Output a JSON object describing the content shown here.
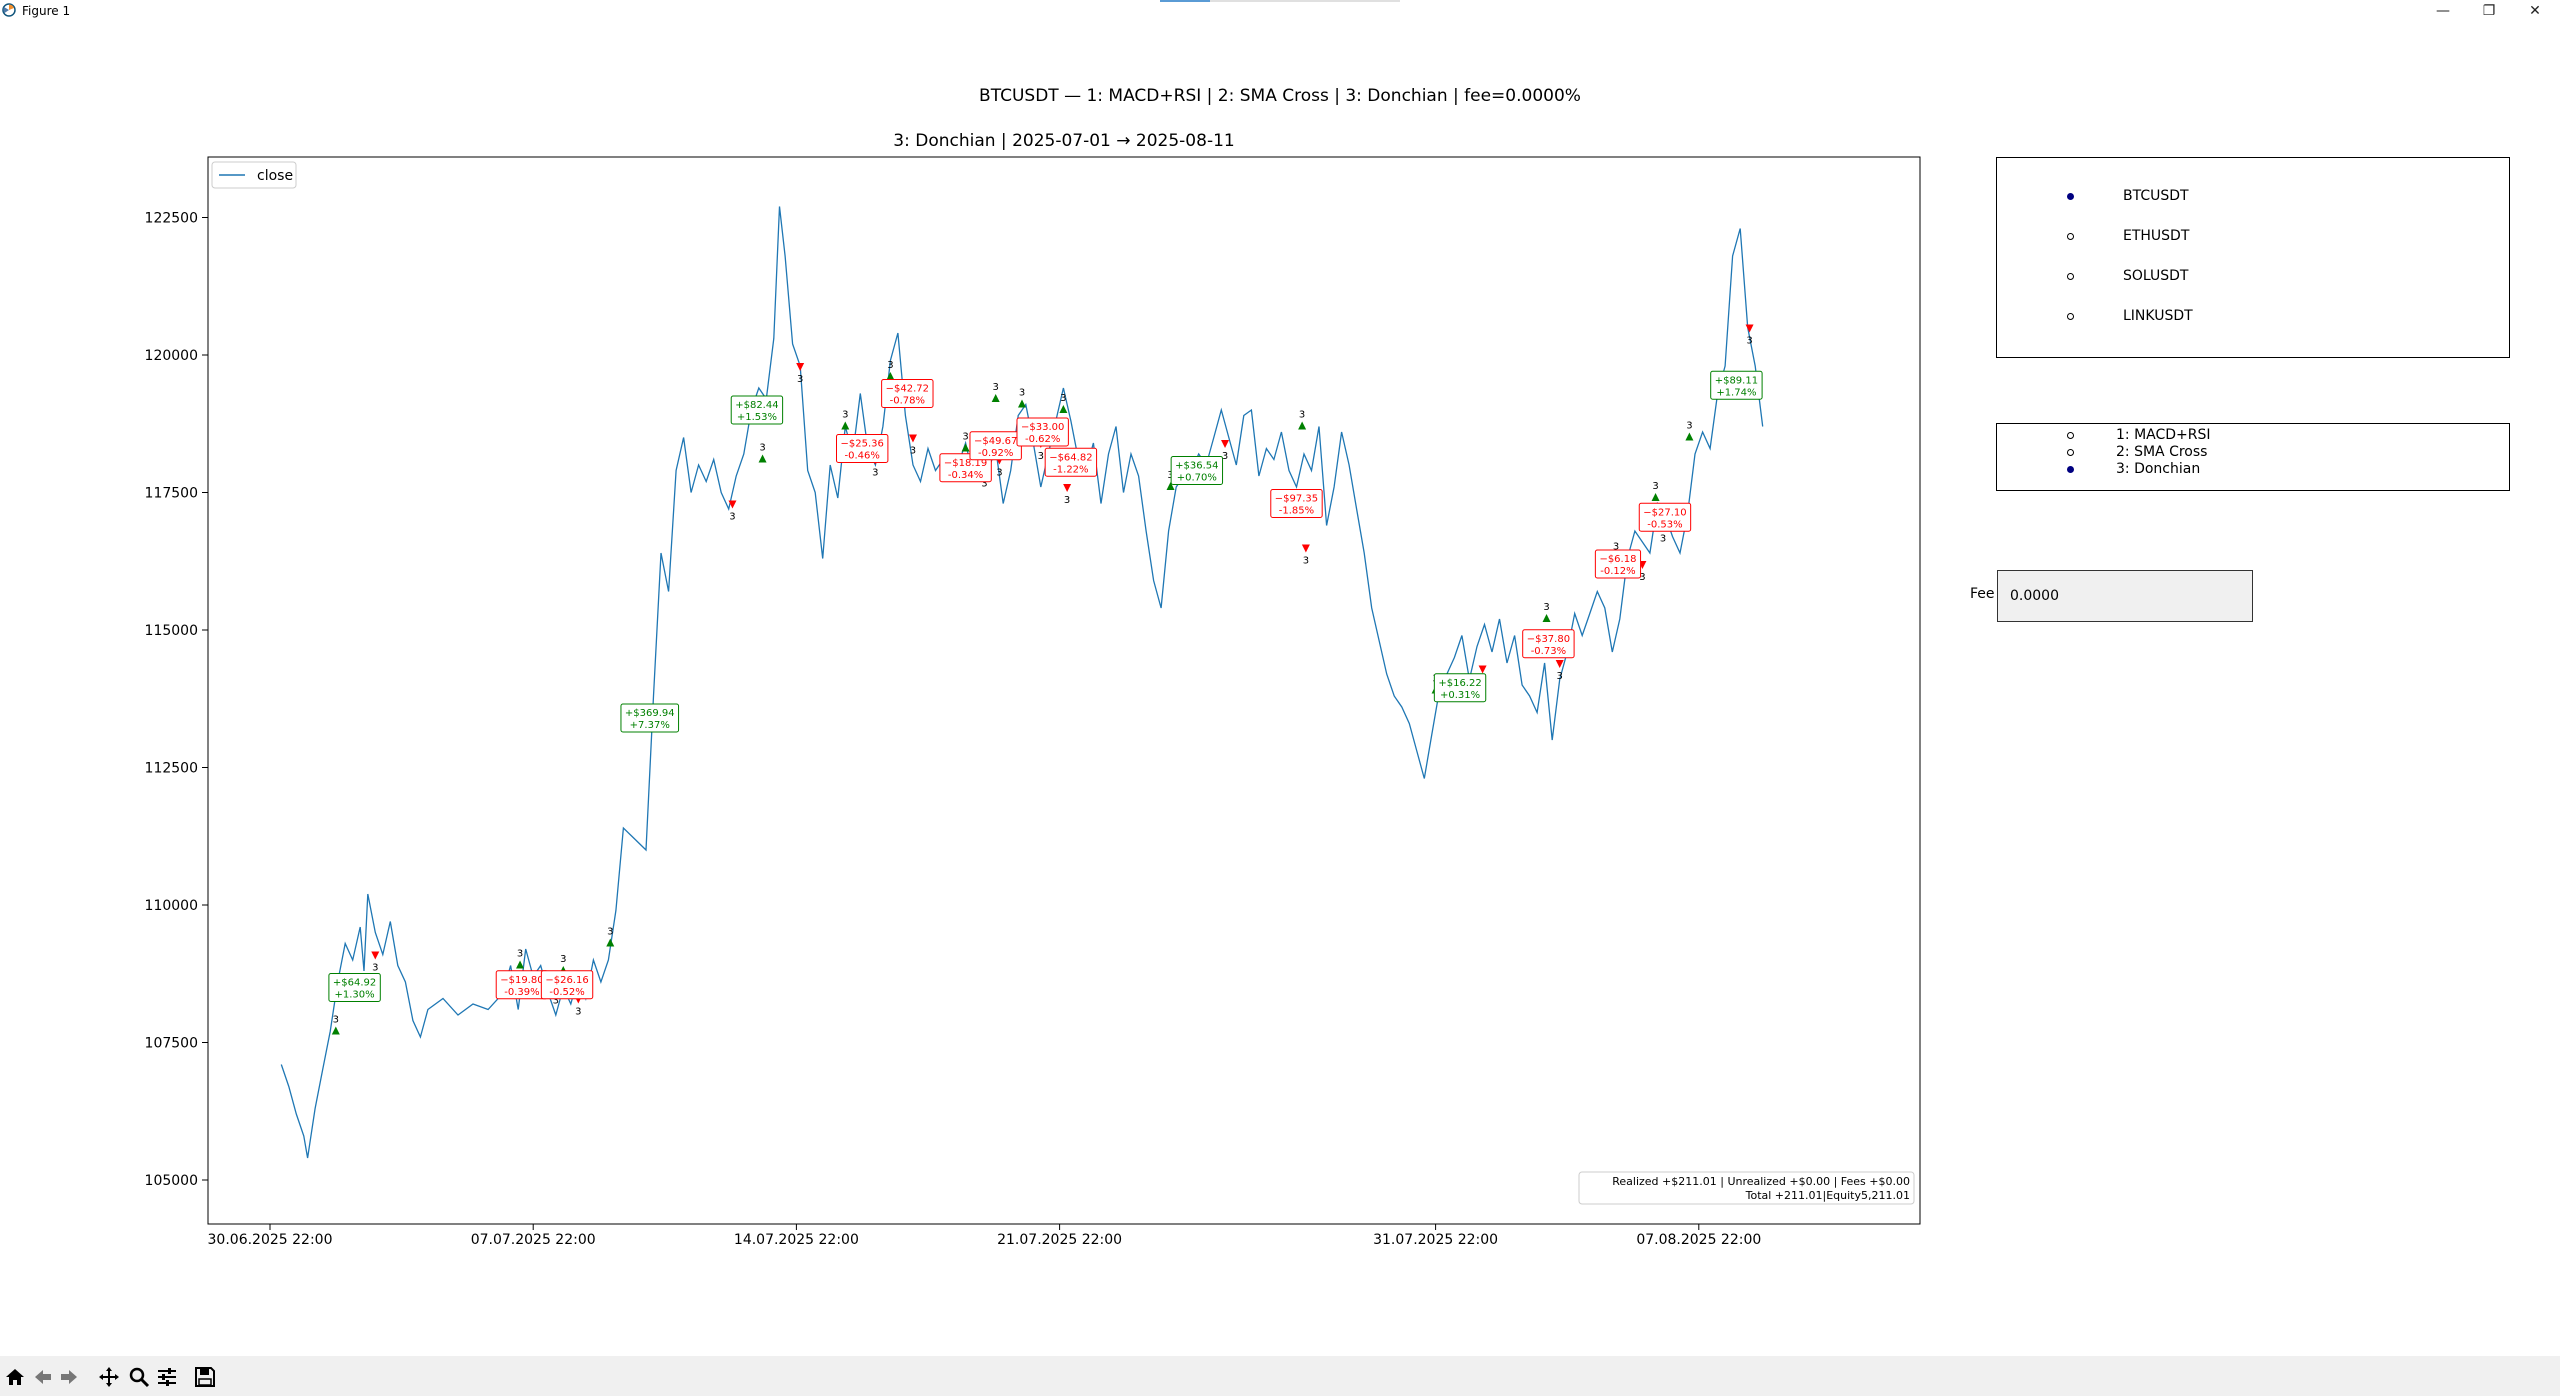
{
  "window": {
    "title": "Figure 1",
    "minimize_glyph": "—",
    "restore_glyph": "❐",
    "close_glyph": "✕"
  },
  "figure": {
    "suptitle": "BTCUSDT — 1: MACD+RSI | 2: SMA Cross | 3: Donchian  |  fee=0.0000%"
  },
  "chart_data": {
    "type": "line",
    "title": "3: Donchian  |  2025-07-01 → 2025-08-11",
    "xlabel": "",
    "ylabel": "",
    "x_start": "2025-06-30 22:00",
    "x_end": "2025-08-11 12:00",
    "ylim": [
      104200,
      123600
    ],
    "yticks": [
      105000,
      107500,
      110000,
      112500,
      115000,
      117500,
      120000,
      122500
    ],
    "xtick_labels": [
      "30.06.2025 22:00",
      "07.07.2025 22:00",
      "14.07.2025 22:00",
      "21.07.2025 22:00",
      "31.07.2025 22:00",
      "07.08.2025 22:00"
    ],
    "xtick_days": [
      0,
      7,
      14,
      21,
      31,
      38
    ],
    "legend": {
      "entries": [
        "close"
      ],
      "placement": "upper-left"
    },
    "series": [
      {
        "name": "close",
        "color": "#1f77b4",
        "points": [
          [
            0.3,
            107100
          ],
          [
            0.5,
            106700
          ],
          [
            0.7,
            106200
          ],
          [
            0.9,
            105800
          ],
          [
            1.0,
            105400
          ],
          [
            1.2,
            106300
          ],
          [
            1.4,
            107000
          ],
          [
            1.6,
            107700
          ],
          [
            1.8,
            108600
          ],
          [
            2.0,
            109300
          ],
          [
            2.2,
            109000
          ],
          [
            2.4,
            109600
          ],
          [
            2.5,
            108800
          ],
          [
            2.6,
            110200
          ],
          [
            2.8,
            109500
          ],
          [
            3.0,
            109100
          ],
          [
            3.2,
            109700
          ],
          [
            3.4,
            108900
          ],
          [
            3.6,
            108600
          ],
          [
            3.8,
            107900
          ],
          [
            4.0,
            107600
          ],
          [
            4.2,
            108100
          ],
          [
            4.6,
            108300
          ],
          [
            5.0,
            108000
          ],
          [
            5.4,
            108200
          ],
          [
            5.8,
            108100
          ],
          [
            6.2,
            108400
          ],
          [
            6.4,
            108900
          ],
          [
            6.6,
            108100
          ],
          [
            6.8,
            109200
          ],
          [
            7.0,
            108700
          ],
          [
            7.2,
            108900
          ],
          [
            7.4,
            108400
          ],
          [
            7.6,
            108000
          ],
          [
            7.8,
            108500
          ],
          [
            8.0,
            108200
          ],
          [
            8.2,
            108700
          ],
          [
            8.4,
            108300
          ],
          [
            8.6,
            109000
          ],
          [
            8.8,
            108600
          ],
          [
            9.0,
            109000
          ],
          [
            9.2,
            109900
          ],
          [
            9.4,
            111400
          ],
          [
            9.7,
            111200
          ],
          [
            10.0,
            111000
          ],
          [
            10.2,
            113800
          ],
          [
            10.4,
            116400
          ],
          [
            10.6,
            115700
          ],
          [
            10.8,
            117900
          ],
          [
            11.0,
            118500
          ],
          [
            11.2,
            117500
          ],
          [
            11.4,
            118000
          ],
          [
            11.6,
            117700
          ],
          [
            11.8,
            118100
          ],
          [
            12.0,
            117500
          ],
          [
            12.2,
            117200
          ],
          [
            12.4,
            117800
          ],
          [
            12.6,
            118200
          ],
          [
            12.8,
            119000
          ],
          [
            13.0,
            119400
          ],
          [
            13.2,
            119200
          ],
          [
            13.4,
            120300
          ],
          [
            13.55,
            122700
          ],
          [
            13.7,
            121800
          ],
          [
            13.9,
            120200
          ],
          [
            14.1,
            119800
          ],
          [
            14.3,
            117900
          ],
          [
            14.5,
            117500
          ],
          [
            14.7,
            116300
          ],
          [
            14.9,
            118000
          ],
          [
            15.1,
            117400
          ],
          [
            15.3,
            118700
          ],
          [
            15.5,
            118200
          ],
          [
            15.7,
            119300
          ],
          [
            15.9,
            118300
          ],
          [
            16.1,
            118000
          ],
          [
            16.3,
            118700
          ],
          [
            16.5,
            119900
          ],
          [
            16.7,
            120400
          ],
          [
            16.9,
            118900
          ],
          [
            17.1,
            118000
          ],
          [
            17.3,
            117700
          ],
          [
            17.5,
            118300
          ],
          [
            17.7,
            117900
          ],
          [
            17.9,
            118100
          ],
          [
            18.1,
            117900
          ],
          [
            18.3,
            118000
          ],
          [
            18.5,
            118400
          ],
          [
            18.7,
            117800
          ],
          [
            18.9,
            118500
          ],
          [
            19.1,
            117900
          ],
          [
            19.3,
            118300
          ],
          [
            19.5,
            117300
          ],
          [
            19.7,
            117900
          ],
          [
            19.9,
            118900
          ],
          [
            20.1,
            119100
          ],
          [
            20.3,
            118400
          ],
          [
            20.5,
            117600
          ],
          [
            20.7,
            118200
          ],
          [
            20.9,
            118800
          ],
          [
            21.1,
            119400
          ],
          [
            21.3,
            118800
          ],
          [
            21.5,
            118100
          ],
          [
            21.7,
            117900
          ],
          [
            21.9,
            118400
          ],
          [
            22.1,
            117300
          ],
          [
            22.3,
            118200
          ],
          [
            22.5,
            118700
          ],
          [
            22.7,
            117500
          ],
          [
            22.9,
            118200
          ],
          [
            23.1,
            117800
          ],
          [
            23.3,
            116800
          ],
          [
            23.5,
            115900
          ],
          [
            23.7,
            115400
          ],
          [
            23.9,
            116800
          ],
          [
            24.1,
            117600
          ],
          [
            24.3,
            117800
          ],
          [
            24.5,
            117900
          ],
          [
            24.7,
            118200
          ],
          [
            24.9,
            118000
          ],
          [
            25.1,
            118500
          ],
          [
            25.3,
            119000
          ],
          [
            25.5,
            118500
          ],
          [
            25.7,
            118000
          ],
          [
            25.9,
            118900
          ],
          [
            26.1,
            119000
          ],
          [
            26.3,
            117800
          ],
          [
            26.5,
            118300
          ],
          [
            26.7,
            118100
          ],
          [
            26.9,
            118600
          ],
          [
            27.1,
            117900
          ],
          [
            27.3,
            117600
          ],
          [
            27.5,
            118200
          ],
          [
            27.7,
            117900
          ],
          [
            27.9,
            118700
          ],
          [
            28.1,
            116900
          ],
          [
            28.3,
            117600
          ],
          [
            28.5,
            118600
          ],
          [
            28.7,
            118000
          ],
          [
            28.9,
            117200
          ],
          [
            29.1,
            116400
          ],
          [
            29.3,
            115400
          ],
          [
            29.5,
            114800
          ],
          [
            29.7,
            114200
          ],
          [
            29.9,
            113800
          ],
          [
            30.1,
            113600
          ],
          [
            30.3,
            113300
          ],
          [
            30.5,
            112800
          ],
          [
            30.7,
            112300
          ],
          [
            30.9,
            113100
          ],
          [
            31.1,
            113900
          ],
          [
            31.3,
            114200
          ],
          [
            31.5,
            114500
          ],
          [
            31.7,
            114900
          ],
          [
            31.9,
            114100
          ],
          [
            32.1,
            114700
          ],
          [
            32.3,
            115100
          ],
          [
            32.5,
            114600
          ],
          [
            32.7,
            115200
          ],
          [
            32.9,
            114400
          ],
          [
            33.1,
            114900
          ],
          [
            33.3,
            114000
          ],
          [
            33.5,
            113800
          ],
          [
            33.7,
            113500
          ],
          [
            33.9,
            114400
          ],
          [
            34.1,
            113000
          ],
          [
            34.3,
            114100
          ],
          [
            34.5,
            114600
          ],
          [
            34.7,
            115300
          ],
          [
            34.9,
            114900
          ],
          [
            35.1,
            115300
          ],
          [
            35.3,
            115700
          ],
          [
            35.5,
            115400
          ],
          [
            35.7,
            114600
          ],
          [
            35.9,
            115200
          ],
          [
            36.1,
            116300
          ],
          [
            36.3,
            116800
          ],
          [
            36.5,
            116600
          ],
          [
            36.7,
            116400
          ],
          [
            36.9,
            117300
          ],
          [
            37.1,
            117100
          ],
          [
            37.3,
            116700
          ],
          [
            37.5,
            116400
          ],
          [
            37.7,
            117100
          ],
          [
            37.9,
            118200
          ],
          [
            38.1,
            118600
          ],
          [
            38.3,
            118300
          ],
          [
            38.5,
            119300
          ],
          [
            38.7,
            119800
          ],
          [
            38.9,
            121800
          ],
          [
            39.1,
            122300
          ],
          [
            39.3,
            120500
          ],
          [
            39.5,
            119800
          ],
          [
            39.7,
            118700
          ]
        ]
      }
    ],
    "trades": [
      {
        "entry_day": 1.75,
        "entry_price": 107700,
        "exit_day": 2.8,
        "exit_price": 109100,
        "pnl": "+$64.92",
        "pct": "+1.30%",
        "label_day": 2.25,
        "label_price": 108500,
        "result": "win"
      },
      {
        "entry_day": 6.65,
        "entry_price": 108900,
        "exit_day": 7.6,
        "exit_price": 108500,
        "pnl": "−$19.80",
        "pct": "-0.39%",
        "label_day": 6.7,
        "label_price": 108550,
        "result": "loss"
      },
      {
        "entry_day": 7.8,
        "entry_price": 108800,
        "exit_day": 8.2,
        "exit_price": 108300,
        "pnl": "−$26.16",
        "pct": "-0.52%",
        "label_day": 7.9,
        "label_price": 108550,
        "result": "loss"
      },
      {
        "entry_day": 9.05,
        "entry_price": 109300,
        "exit_day": 12.3,
        "exit_price": 117300,
        "pnl": "+$369.94",
        "pct": "+7.37%",
        "label_day": 10.1,
        "label_price": 113400,
        "result": "win"
      },
      {
        "entry_day": 13.1,
        "entry_price": 118100,
        "exit_day": 14.1,
        "exit_price": 119800,
        "pnl": "+$82.44",
        "pct": "+1.53%",
        "label_day": 12.95,
        "label_price": 119000,
        "result": "win"
      },
      {
        "entry_day": 15.3,
        "entry_price": 118700,
        "exit_day": 16.1,
        "exit_price": 118100,
        "pnl": "−$25.36",
        "pct": "-0.46%",
        "label_day": 15.75,
        "label_price": 118300,
        "result": "loss"
      },
      {
        "entry_day": 16.5,
        "entry_price": 119600,
        "exit_day": 17.1,
        "exit_price": 118500,
        "pnl": "−$42.72",
        "pct": "-0.78%",
        "label_day": 16.95,
        "label_price": 119300,
        "result": "loss"
      },
      {
        "entry_day": 18.5,
        "entry_price": 118300,
        "exit_day": 19.0,
        "exit_price": 117900,
        "pnl": "−$18.19",
        "pct": "-0.34%",
        "label_day": 18.5,
        "label_price": 117950,
        "result": "loss"
      },
      {
        "entry_day": 19.3,
        "entry_price": 119200,
        "exit_day": 19.4,
        "exit_price": 118100,
        "pnl": "−$49.67",
        "pct": "-0.92%",
        "label_day": 19.3,
        "label_price": 118350,
        "result": "loss"
      },
      {
        "entry_day": 20.0,
        "entry_price": 119100,
        "exit_day": 20.5,
        "exit_price": 118400,
        "pnl": "−$33.00",
        "pct": "-0.62%",
        "label_day": 20.55,
        "label_price": 118600,
        "result": "loss"
      },
      {
        "entry_day": 21.1,
        "entry_price": 119000,
        "exit_day": 21.2,
        "exit_price": 117600,
        "pnl": "−$64.82",
        "pct": "-1.22%",
        "label_day": 21.3,
        "label_price": 118050,
        "result": "loss"
      },
      {
        "entry_day": 23.95,
        "entry_price": 117600,
        "exit_day": 25.4,
        "exit_price": 118400,
        "pnl": "+$36.54",
        "pct": "+0.70%",
        "label_day": 24.65,
        "label_price": 117900,
        "result": "win"
      },
      {
        "entry_day": 27.45,
        "entry_price": 118700,
        "exit_day": 27.55,
        "exit_price": 116500,
        "pnl": "−$97.35",
        "pct": "-1.85%",
        "label_day": 27.3,
        "label_price": 117300,
        "result": "loss"
      },
      {
        "entry_day": 31.0,
        "entry_price": 113900,
        "exit_day": 32.25,
        "exit_price": 114300,
        "pnl": "+$16.22",
        "pct": "+0.31%",
        "label_day": 31.65,
        "label_price": 113950,
        "result": "win"
      },
      {
        "entry_day": 33.95,
        "entry_price": 115200,
        "exit_day": 34.3,
        "exit_price": 114400,
        "pnl": "−$37.80",
        "pct": "-0.73%",
        "label_day": 34.0,
        "label_price": 114750,
        "result": "loss"
      },
      {
        "entry_day": 35.8,
        "entry_price": 116300,
        "exit_day": 36.5,
        "exit_price": 116200,
        "pnl": "−$6.18",
        "pct": "-0.12%",
        "label_day": 35.85,
        "label_price": 116200,
        "result": "loss"
      },
      {
        "entry_day": 36.85,
        "entry_price": 117400,
        "exit_day": 37.05,
        "exit_price": 116900,
        "pnl": "−$27.10",
        "pct": "-0.53%",
        "label_day": 37.1,
        "label_price": 117050,
        "result": "loss"
      },
      {
        "entry_day": 37.75,
        "entry_price": 118500,
        "exit_day": 39.35,
        "exit_price": 120500,
        "pnl": "+$89.11",
        "pct": "+1.74%",
        "label_day": 39.0,
        "label_price": 119450,
        "result": "win"
      }
    ],
    "summary": {
      "line1": "Realized +$211.01   |   Unrealized +$0.00   |   Fees +$0.00",
      "line2": "Total +211.01|Equity5,211.01"
    },
    "marker_label": "3",
    "colors": {
      "win": "#008000",
      "loss": "#ff0000",
      "entry_marker": "#008000",
      "exit_marker": "#ff0000"
    }
  },
  "symbols": {
    "options": [
      "BTCUSDT",
      "ETHUSDT",
      "SOLUSDT",
      "LINKUSDT"
    ],
    "selected": "BTCUSDT"
  },
  "strategies": {
    "options": [
      "1:  MACD+RSI",
      "2:  SMA Cross",
      "3:  Donchian"
    ],
    "selected": "3:  Donchian"
  },
  "fee": {
    "label": "Fee",
    "value": "0.0000"
  },
  "toolbar": {
    "icons": [
      "home-icon",
      "back-icon",
      "forward-icon",
      "pan-icon",
      "zoom-icon",
      "configure-icon",
      "save-icon"
    ]
  }
}
